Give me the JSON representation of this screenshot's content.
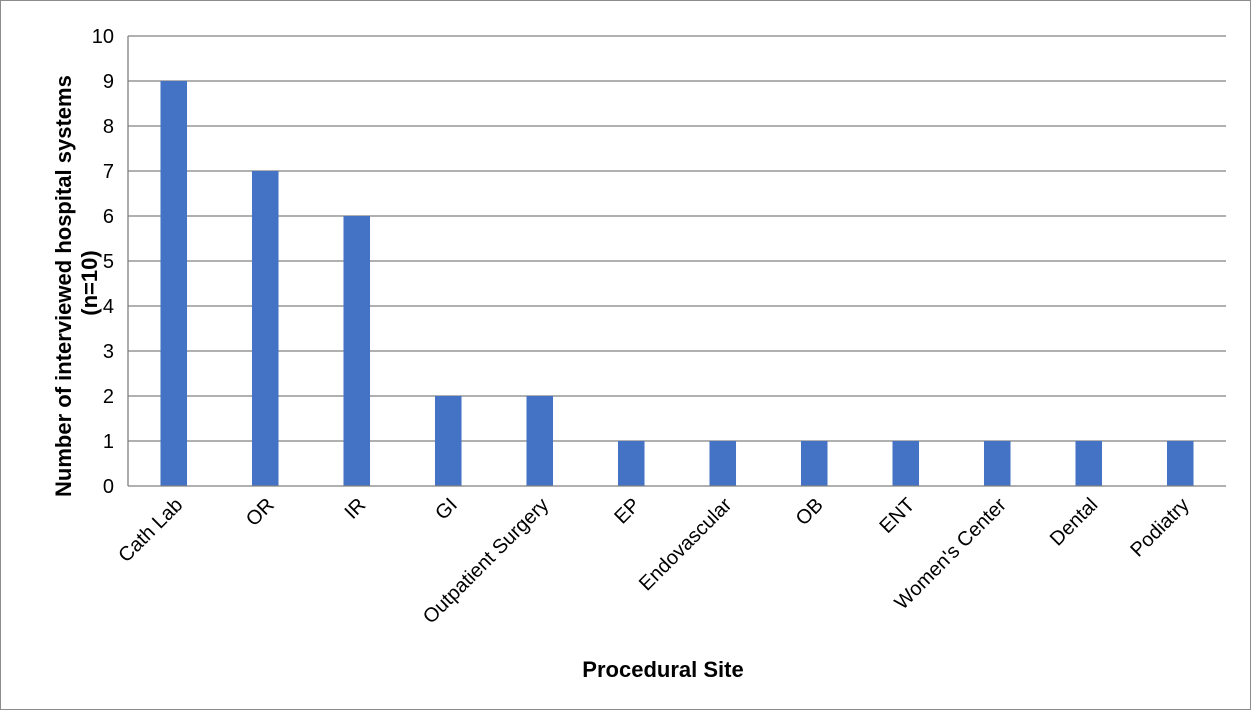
{
  "chart_data": {
    "type": "bar",
    "categories": [
      "Cath Lab",
      "OR",
      "IR",
      "GI",
      "Outpatient Surgery",
      "EP",
      "Endovascular",
      "OB",
      "ENT",
      "Women's Center",
      "Dental",
      "Podiatry"
    ],
    "values": [
      9,
      7,
      6,
      2,
      2,
      1,
      1,
      1,
      1,
      1,
      1,
      1
    ],
    "title": "",
    "xlabel": "Procedural Site",
    "ylabel": "Number of interviewed hospital systems (n=10)",
    "ylabel_lines": [
      "Number of interviewed hospital systems",
      "(n=10)"
    ],
    "ylim": [
      0,
      10
    ],
    "yticks": [
      0,
      1,
      2,
      3,
      4,
      5,
      6,
      7,
      8,
      9,
      10
    ],
    "grid": "horizontal",
    "legend": "none",
    "bar_color": "#4472C4",
    "grid_color": "#808080"
  }
}
